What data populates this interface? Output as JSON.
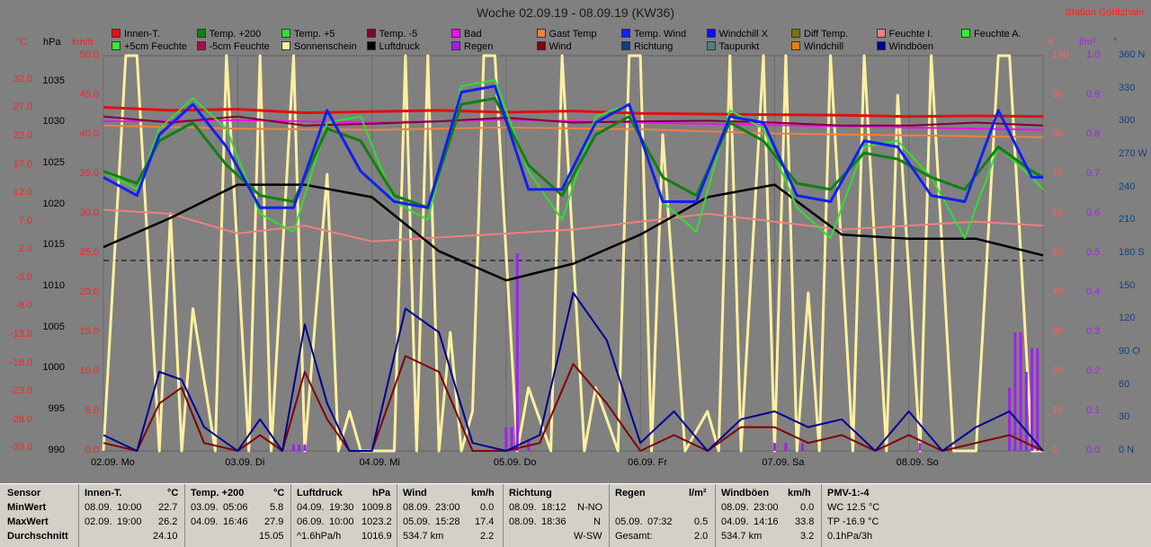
{
  "title": "Woche 02.09.19 - 08.09.19 (KW36)",
  "station": "Station Göritzhain",
  "legend": [
    {
      "label": "Innen-T.",
      "color": "#e01010"
    },
    {
      "label": "Temp. +200",
      "color": "#108010"
    },
    {
      "label": "Temp. +5",
      "color": "#30e030"
    },
    {
      "label": "Temp. -5",
      "color": "#800030"
    },
    {
      "label": "Bad",
      "color": "#f010f0"
    },
    {
      "label": "Gast Temp",
      "color": "#f08040"
    },
    {
      "label": "Temp. Wind",
      "color": "#1020f0"
    },
    {
      "label": "Windchill X",
      "color": "#1010f0"
    },
    {
      "label": "Diff Temp.",
      "color": "#807000"
    },
    {
      "label": "Feuchte I.",
      "color": "#f08080"
    },
    {
      "label": "Feuchte A.",
      "color": "#30f030"
    },
    {
      "label": "+5cm Feuchte",
      "color": "#30f030"
    },
    {
      "label": "-5cm Feuchte",
      "color": "#a01050"
    },
    {
      "label": "Sonnenschein",
      "color": "#fff0a0"
    },
    {
      "label": "Luftdruck",
      "color": "#000000"
    },
    {
      "label": "Regen",
      "color": "#a020f0"
    },
    {
      "label": "Wind",
      "color": "#800000"
    },
    {
      "label": "Richtung",
      "color": "#104080"
    },
    {
      "label": "Taupunkt",
      "color": "#508080"
    },
    {
      "label": "Windchill",
      "color": "#f08000"
    },
    {
      "label": "Windböen",
      "color": "#000090"
    }
  ],
  "axes": {
    "celsius_unit": "°C",
    "hpa_unit": "hPa",
    "kmh_unit": "km/h",
    "percent_unit": "%",
    "lm2_unit": "l/m²",
    "deg_unit": "°",
    "celsius_ticks": [
      "32.0",
      "27.0",
      "22.0",
      "17.0",
      "12.0",
      "7.0",
      "2.0",
      "-3.0",
      "-8.0",
      "-13.0",
      "-18.0",
      "-23.0",
      "-28.0",
      "-33.0"
    ],
    "hpa_ticks": [
      "1035",
      "1030",
      "1025",
      "1020",
      "1015",
      "1010",
      "1005",
      "1000",
      "995",
      "990"
    ],
    "kmh_ticks": [
      "50.0",
      "45.0",
      "40.0",
      "35.0",
      "30.0",
      "25.0",
      "20.0",
      "15.0",
      "10.0",
      "5.0",
      "0.0"
    ],
    "percent_ticks": [
      "100",
      "90",
      "80",
      "70",
      "60",
      "50",
      "40",
      "30",
      "20",
      "10",
      "0"
    ],
    "lm2_ticks": [
      "1.0",
      "0.9",
      "0.8",
      "0.7",
      "0.6",
      "0.5",
      "0.4",
      "0.3",
      "0.2",
      "0.1",
      "0.0"
    ],
    "deg_ticks": [
      "360 N",
      "330",
      "300",
      "270 W",
      "240",
      "210",
      "180 S",
      "150",
      "120",
      "90 O",
      "60",
      "30",
      "0 N"
    ],
    "day_labels": [
      "02.09. Mo",
      "03.09. Di",
      "04.09. Mi",
      "05.09. Do",
      "06.09. Fr",
      "07.09. Sa",
      "08.09. So"
    ]
  },
  "chart_data": {
    "type": "line",
    "x_days": [
      "02.09.",
      "03.09.",
      "04.09.",
      "05.09.",
      "06.09.",
      "07.09.",
      "08.09."
    ],
    "x_unit": "hours since 02.09. 00:00",
    "ylim_kmh": [
      0,
      50
    ],
    "ylim_celsius": [
      -33,
      32
    ],
    "ylim_hpa": [
      990,
      1037.5
    ],
    "ylim_percent": [
      0,
      100
    ],
    "series": [
      {
        "name": "Innen-T.",
        "axis": "celsius",
        "color": "#e01010",
        "width": 3,
        "x": [
          0,
          12,
          24,
          36,
          48,
          60,
          72,
          84,
          96,
          108,
          120,
          132,
          144,
          156,
          168
        ],
        "y": [
          23.5,
          23.0,
          23.2,
          22.6,
          22.8,
          23.0,
          22.7,
          22.9,
          22.5,
          22.4,
          22.3,
          22.2,
          22.0,
          22.1,
          22.0
        ]
      },
      {
        "name": "Temp. -5",
        "axis": "celsius",
        "color": "#800030",
        "width": 2,
        "x": [
          0,
          12,
          24,
          36,
          48,
          60,
          72,
          84,
          96,
          108,
          120,
          132,
          144,
          156,
          168
        ],
        "y": [
          22.0,
          21.0,
          22.0,
          20.5,
          20.8,
          21.2,
          21.8,
          21.0,
          21.2,
          21.3,
          21.0,
          20.5,
          20.5,
          21.0,
          20.5
        ]
      },
      {
        "name": "Bad",
        "axis": "celsius",
        "color": "#f010f0",
        "width": 2,
        "x": [
          0,
          24,
          48,
          72,
          96,
          120,
          144,
          168
        ],
        "y": [
          21.2,
          21.4,
          21.0,
          21.5,
          21.0,
          20.6,
          20.2,
          19.8
        ]
      },
      {
        "name": "Gast Temp",
        "axis": "celsius",
        "color": "#f08040",
        "width": 2,
        "x": [
          0,
          24,
          48,
          72,
          96,
          120,
          144,
          168
        ],
        "y": [
          20.5,
          20.0,
          19.8,
          20.2,
          19.9,
          19.2,
          18.9,
          18.6
        ]
      },
      {
        "name": "Feuchte I.",
        "axis": "percent",
        "color": "#f08080",
        "width": 2,
        "x": [
          0,
          12,
          24,
          36,
          48,
          60,
          72,
          84,
          96,
          108,
          120,
          132,
          144,
          156,
          168
        ],
        "y": [
          61,
          60,
          55,
          57,
          53,
          54,
          55,
          56,
          58,
          60,
          58,
          56,
          57,
          58,
          57
        ]
      },
      {
        "name": "Temp. +5",
        "axis": "celsius",
        "color": "#30e030",
        "width": 2,
        "x": [
          0,
          6,
          10,
          16,
          22,
          28,
          34,
          40,
          46,
          52,
          58,
          64,
          70,
          76,
          82,
          88,
          94,
          100,
          106,
          112,
          118,
          124,
          130,
          136,
          142,
          148,
          154,
          160,
          166,
          168
        ],
        "y": [
          13,
          10,
          20,
          25,
          20,
          6,
          3,
          21,
          22,
          8,
          5,
          27,
          28,
          13,
          5,
          22,
          24,
          8,
          3,
          23,
          20,
          7,
          2,
          17,
          18,
          12,
          2,
          17,
          12,
          10
        ]
      },
      {
        "name": "Temp. +200",
        "axis": "celsius",
        "color": "#108010",
        "width": 3,
        "x": [
          0,
          6,
          10,
          16,
          22,
          28,
          34,
          40,
          46,
          52,
          58,
          64,
          70,
          76,
          82,
          88,
          94,
          100,
          106,
          112,
          118,
          124,
          130,
          136,
          142,
          148,
          154,
          160,
          166,
          168
        ],
        "y": [
          13,
          11,
          18,
          21,
          14,
          9,
          8,
          20,
          18,
          9,
          7,
          24,
          25,
          14,
          9,
          19,
          22,
          12,
          9,
          21,
          18,
          11,
          10,
          16,
          15,
          12,
          10,
          17,
          13,
          12
        ]
      },
      {
        "name": "Temp. Wind",
        "axis": "celsius",
        "color": "#1020f0",
        "width": 3,
        "x": [
          0,
          6,
          10,
          16,
          22,
          28,
          34,
          40,
          46,
          52,
          58,
          64,
          70,
          76,
          82,
          88,
          94,
          100,
          106,
          112,
          118,
          124,
          130,
          136,
          142,
          148,
          154,
          160,
          166,
          168
        ],
        "y": [
          12,
          9,
          19,
          24,
          17,
          7,
          7,
          23,
          13,
          8,
          7,
          26,
          27,
          10,
          10,
          21,
          24,
          8,
          8,
          22,
          21,
          9,
          8,
          18,
          17,
          9,
          8,
          23,
          12,
          12
        ]
      },
      {
        "name": "Luftdruck",
        "axis": "hpa",
        "color": "#000000",
        "width": 2.5,
        "x": [
          0,
          12,
          24,
          36,
          48,
          60,
          72,
          84,
          96,
          108,
          120,
          132,
          144,
          156,
          168
        ],
        "y": [
          1014.5,
          1018.0,
          1022.0,
          1022.0,
          1020.5,
          1014.0,
          1010.5,
          1012.5,
          1016.0,
          1020.5,
          1022.0,
          1016.0,
          1015.5,
          1015.5,
          1013.5
        ]
      },
      {
        "name": "Sonnenschein",
        "axis": "kmh",
        "color": "#fff0a0",
        "width": 3,
        "x": [
          0,
          4,
          6,
          10,
          12,
          14,
          16,
          20,
          22,
          26,
          28,
          30,
          34,
          36,
          40,
          42,
          44,
          46,
          52,
          54,
          56,
          58,
          60,
          62,
          64,
          66,
          68,
          70,
          74,
          76,
          80,
          82,
          86,
          88,
          92,
          94,
          96,
          98,
          100,
          104,
          108,
          110,
          112,
          114,
          118,
          120,
          122,
          124,
          126,
          128,
          130,
          134,
          136,
          140,
          142,
          146,
          148,
          152,
          156,
          160,
          162,
          166,
          168
        ],
        "y": [
          0,
          50,
          50,
          0,
          30,
          0,
          18,
          0,
          50,
          0,
          50,
          0,
          50,
          0,
          35,
          0,
          5,
          0,
          0,
          50,
          0,
          50,
          0,
          15,
          0,
          5,
          50,
          50,
          0,
          8,
          0,
          50,
          0,
          8,
          0,
          50,
          50,
          0,
          40,
          0,
          5,
          0,
          50,
          0,
          50,
          0,
          50,
          0,
          20,
          0,
          50,
          0,
          50,
          0,
          45,
          0,
          50,
          0,
          0,
          50,
          50,
          0,
          0
        ]
      },
      {
        "name": "Wind",
        "axis": "kmh",
        "color": "#800000",
        "width": 2,
        "x": [
          0,
          6,
          10,
          14,
          18,
          24,
          28,
          32,
          36,
          40,
          44,
          48,
          54,
          60,
          66,
          72,
          78,
          84,
          90,
          96,
          102,
          108,
          114,
          120,
          126,
          132,
          138,
          144,
          150,
          156,
          162,
          168
        ],
        "y": [
          1,
          0,
          6,
          8,
          1,
          0,
          2,
          0,
          10,
          4,
          0,
          0,
          12,
          10,
          0,
          0,
          1,
          11,
          6,
          0,
          2,
          0,
          3,
          3,
          1,
          2,
          0,
          2,
          0,
          1,
          2,
          0
        ]
      },
      {
        "name": "Windböen",
        "axis": "kmh",
        "color": "#000090",
        "width": 2,
        "x": [
          0,
          6,
          10,
          14,
          18,
          24,
          28,
          32,
          36,
          40,
          44,
          48,
          54,
          60,
          66,
          72,
          78,
          84,
          90,
          96,
          102,
          108,
          114,
          120,
          126,
          132,
          138,
          144,
          150,
          156,
          162,
          168
        ],
        "y": [
          2,
          0,
          10,
          9,
          3,
          0,
          4,
          0,
          16,
          6,
          0,
          0,
          18,
          15,
          1,
          0,
          2,
          20,
          14,
          1,
          5,
          0,
          4,
          5,
          3,
          4,
          0,
          5,
          0,
          3,
          5,
          0
        ]
      },
      {
        "name": "Regen",
        "axis": "kmh",
        "color": "#a020f0",
        "type": "bar",
        "x": [
          34,
          35,
          36,
          72,
          73,
          74,
          76,
          120,
          122,
          125,
          146,
          162,
          163,
          164,
          165,
          166,
          167
        ],
        "y": [
          0.8,
          0.8,
          0.8,
          3,
          3,
          25,
          1.5,
          1,
          1,
          1,
          1,
          8,
          15,
          15,
          10,
          13,
          13
        ]
      }
    ]
  },
  "stats": {
    "sensor": {
      "header": "Sensor",
      "min": "MinWert",
      "max": "MaxWert",
      "avg": "Durchschnitt"
    },
    "innen": {
      "header": "Innen-T.",
      "unit": "°C",
      "min_date": "08.09.",
      "min_time": "10:00",
      "min_val": "22.7",
      "max_date": "02.09.",
      "max_time": "19:00",
      "max_val": "26.2",
      "avg": "24.10"
    },
    "temp200": {
      "header": "Temp. +200",
      "unit": "°C",
      "min_date": "03.09.",
      "min_time": "05:06",
      "min_val": "5.8",
      "max_date": "04.09.",
      "max_time": "16:46",
      "max_val": "27.9",
      "avg": "15.05"
    },
    "druck": {
      "header": "Luftdruck",
      "unit": "hPa",
      "min_date": "04.09.",
      "min_time": "19:30",
      "min_val": "1009.8",
      "max_date": "06.09.",
      "max_time": "10:00",
      "max_val": "1023.2",
      "trend": "^1.6hPa/h",
      "avg": "1016.9"
    },
    "wind": {
      "header": "Wind",
      "unit": "km/h",
      "min_date": "08.09.",
      "min_time": "23:00",
      "min_val": "0.0",
      "max_date": "05.09.",
      "max_time": "15:28",
      "max_val": "17.4",
      "dist": "534.7 km",
      "avg": "2.2"
    },
    "richtung": {
      "header": "Richtung",
      "min_date": "08.09.",
      "min_time": "18:12",
      "min_val": "N-NO",
      "max_date": "08.09.",
      "max_time": "18:36",
      "max_val": "N",
      "avg": "W-SW"
    },
    "regen": {
      "header": "Regen",
      "unit": "l/m²",
      "max_date": "05.09.",
      "max_time": "07:32",
      "max_val": "0.5",
      "total_label": "Gesamt:",
      "total": "2.0"
    },
    "boeen": {
      "header": "Windböen",
      "unit": "km/h",
      "min_date": "08.09.",
      "min_time": "23:00",
      "min_val": "0.0",
      "max_date": "04.09.",
      "max_time": "14:16",
      "max_val": "33.8",
      "dist": "534.7 km",
      "avg": "3.2"
    },
    "pmv": {
      "header": "PMV-1:-4",
      "l1": "WC 12.5 °C",
      "l2": "TP -16.9 °C",
      "l3": "0.1hPa/3h"
    }
  }
}
